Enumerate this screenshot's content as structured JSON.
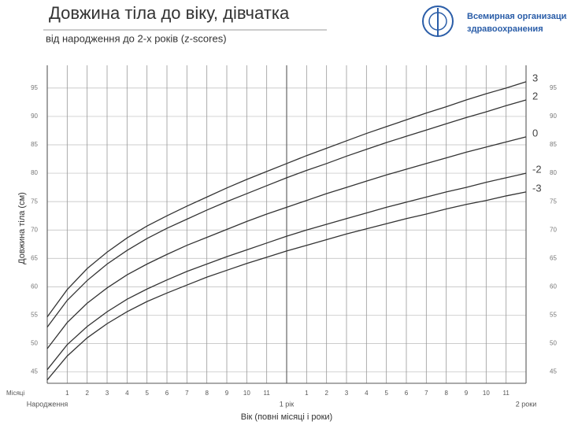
{
  "chart_data": {
    "type": "line",
    "title": "Довжина тіла до віку, дівчатка",
    "subtitle": "від народження до 2-х років (z-scores)",
    "organization": [
      "Всемирная организация",
      "здравоохранения"
    ],
    "x_label": "Вік (повні місяці і роки)",
    "x_unit_label": "Місяці",
    "y_label": "Довжина тіла (см)",
    "x": [
      0,
      1,
      2,
      3,
      4,
      5,
      6,
      7,
      8,
      9,
      10,
      11,
      12,
      13,
      14,
      15,
      16,
      17,
      18,
      19,
      20,
      21,
      22,
      23,
      24
    ],
    "xlim": [
      0,
      24
    ],
    "xticks": [
      {
        "value": 0,
        "label": "Народження"
      },
      1,
      2,
      3,
      4,
      5,
      6,
      7,
      8,
      9,
      10,
      11,
      {
        "value": 12,
        "label": "1 рік"
      },
      {
        "value": 13,
        "label": "1"
      },
      {
        "value": 14,
        "label": "2"
      },
      {
        "value": 15,
        "label": "3"
      },
      {
        "value": 16,
        "label": "4"
      },
      {
        "value": 17,
        "label": "5"
      },
      {
        "value": 18,
        "label": "6"
      },
      {
        "value": 19,
        "label": "7"
      },
      {
        "value": 20,
        "label": "8"
      },
      {
        "value": 21,
        "label": "9"
      },
      {
        "value": 22,
        "label": "10"
      },
      {
        "value": 23,
        "label": "11"
      },
      {
        "value": 24,
        "label": "2 роки"
      }
    ],
    "ylim": [
      43,
      99
    ],
    "yticks": [
      45,
      50,
      55,
      60,
      65,
      70,
      75,
      80,
      85,
      90,
      95
    ],
    "grid": true,
    "series": [
      {
        "name": "3",
        "color": "#333333",
        "values": [
          54.7,
          59.5,
          63.2,
          66.1,
          68.6,
          70.7,
          72.5,
          74.2,
          75.8,
          77.4,
          78.9,
          80.3,
          81.7,
          83.1,
          84.4,
          85.7,
          87.0,
          88.2,
          89.4,
          90.6,
          91.7,
          92.9,
          94.0,
          95.0,
          96.1
        ]
      },
      {
        "name": "2",
        "color": "#333333",
        "values": [
          52.9,
          57.6,
          61.1,
          64.0,
          66.4,
          68.5,
          70.3,
          71.9,
          73.5,
          75.0,
          76.4,
          77.8,
          79.2,
          80.5,
          81.7,
          83.0,
          84.2,
          85.4,
          86.5,
          87.6,
          88.7,
          89.8,
          90.8,
          91.9,
          92.9
        ]
      },
      {
        "name": "0",
        "color": "#333333",
        "values": [
          49.1,
          53.7,
          57.1,
          59.8,
          62.1,
          64.0,
          65.7,
          67.3,
          68.7,
          70.1,
          71.5,
          72.8,
          74.0,
          75.2,
          76.4,
          77.5,
          78.6,
          79.7,
          80.7,
          81.7,
          82.7,
          83.7,
          84.6,
          85.5,
          86.4
        ]
      },
      {
        "name": "-2",
        "color": "#333333",
        "values": [
          45.4,
          49.8,
          53.0,
          55.6,
          57.8,
          59.6,
          61.2,
          62.7,
          64.0,
          65.3,
          66.5,
          67.7,
          68.9,
          70.0,
          71.0,
          72.0,
          73.0,
          74.0,
          74.9,
          75.8,
          76.7,
          77.5,
          78.4,
          79.2,
          80.0
        ]
      },
      {
        "name": "-3",
        "color": "#333333",
        "values": [
          43.6,
          47.8,
          51.0,
          53.5,
          55.6,
          57.4,
          58.9,
          60.3,
          61.7,
          62.9,
          64.1,
          65.2,
          66.3,
          67.3,
          68.3,
          69.3,
          70.2,
          71.1,
          72.0,
          72.8,
          73.7,
          74.5,
          75.2,
          76.0,
          76.7
        ]
      }
    ]
  }
}
